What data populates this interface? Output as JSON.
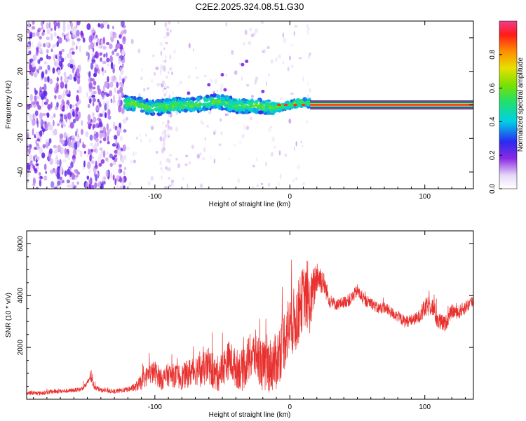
{
  "title": "C2E2.2025.324.08.51.G30",
  "chart_data": [
    {
      "type": "heatmap",
      "xlabel": "Height of straight line (km)",
      "ylabel": "Frequency (Hz)",
      "xlim": [
        -195,
        136
      ],
      "ylim": [
        -50,
        50
      ],
      "xticks": [
        -100,
        0,
        100
      ],
      "yticks": [
        -40,
        -20,
        0,
        20,
        40
      ],
      "xtick_labels": [
        "-100",
        "0",
        "100"
      ],
      "ytick_labels": [
        "-40",
        "-20",
        "0",
        "20",
        "40"
      ],
      "colorbar": {
        "label": "Normalized spectral amplitude",
        "range": [
          0,
          1
        ],
        "ticks": [
          0.0,
          0.2,
          0.4,
          0.6,
          0.8
        ],
        "tick_labels": [
          "0.0",
          "0.2",
          "0.4",
          "0.6",
          "0.8"
        ]
      },
      "features": [
        {
          "name": "broadband noise region",
          "x_range": [
            -195,
            -122
          ],
          "freq_range": [
            -50,
            50
          ],
          "amplitude": 0.15
        },
        {
          "name": "scattered weak returns",
          "x_range": [
            -122,
            15
          ],
          "freq_range": [
            -50,
            50
          ],
          "amplitude": 0.08
        },
        {
          "name": "turbulent echo band",
          "x_range": [
            -122,
            15
          ],
          "center_freq": 0,
          "half_width": 4,
          "amplitude": 0.35
        },
        {
          "name": "coherent straight-line signal",
          "x_range": [
            15,
            136
          ],
          "center_freq": 0,
          "half_width": 1,
          "amplitude": 0.95
        }
      ]
    },
    {
      "type": "line",
      "xlabel": "Height of straight line (km)",
      "ylabel": "SNR (10 * v/v)",
      "xlim": [
        -195,
        136
      ],
      "ylim": [
        0,
        6500
      ],
      "xticks": [
        -100,
        0,
        100
      ],
      "yticks": [
        2000,
        4000,
        6000
      ],
      "xtick_labels": [
        "-100",
        "0",
        "100"
      ],
      "ytick_labels": [
        "2000",
        "4000",
        "6000"
      ],
      "series": [
        {
          "name": "SNR",
          "color": "#e8312e",
          "x": [
            -195,
            -185,
            -175,
            -165,
            -155,
            -150,
            -148,
            -145,
            -140,
            -130,
            -120,
            -115,
            -110,
            -105,
            -100,
            -95,
            -90,
            -85,
            -80,
            -75,
            -70,
            -65,
            -60,
            -55,
            -50,
            -45,
            -40,
            -35,
            -30,
            -25,
            -20,
            -15,
            -10,
            -5,
            0,
            5,
            10,
            15,
            20,
            25,
            30,
            35,
            40,
            45,
            50,
            55,
            60,
            65,
            70,
            75,
            80,
            85,
            90,
            95,
            100,
            105,
            110,
            115,
            120,
            125,
            130,
            136
          ],
          "y": [
            250,
            230,
            300,
            320,
            380,
            600,
            900,
            500,
            350,
            300,
            380,
            450,
            650,
            950,
            1050,
            750,
            950,
            900,
            850,
            1000,
            1150,
            1100,
            1300,
            900,
            1150,
            1550,
            1200,
            1100,
            1600,
            1750,
            1250,
            1300,
            1450,
            2200,
            2900,
            3100,
            4000,
            3600,
            4800,
            4500,
            3750,
            3650,
            3750,
            3850,
            4200,
            3800,
            3750,
            3500,
            3550,
            3350,
            3200,
            3000,
            3050,
            3150,
            3500,
            3650,
            3000,
            2900,
            3400,
            3350,
            3550,
            3800
          ],
          "noise": [
            80,
            80,
            80,
            80,
            80,
            120,
            200,
            120,
            80,
            80,
            100,
            150,
            300,
            400,
            450,
            400,
            450,
            450,
            500,
            550,
            600,
            650,
            700,
            700,
            700,
            750,
            750,
            800,
            900,
            950,
            1000,
            1050,
            1100,
            1200,
            1250,
            1300,
            1200,
            1100,
            700,
            450,
            250,
            220,
            220,
            250,
            250,
            220,
            220,
            220,
            220,
            220,
            220,
            230,
            230,
            240,
            380,
            380,
            380,
            300,
            260,
            260,
            260,
            260
          ]
        }
      ]
    }
  ]
}
